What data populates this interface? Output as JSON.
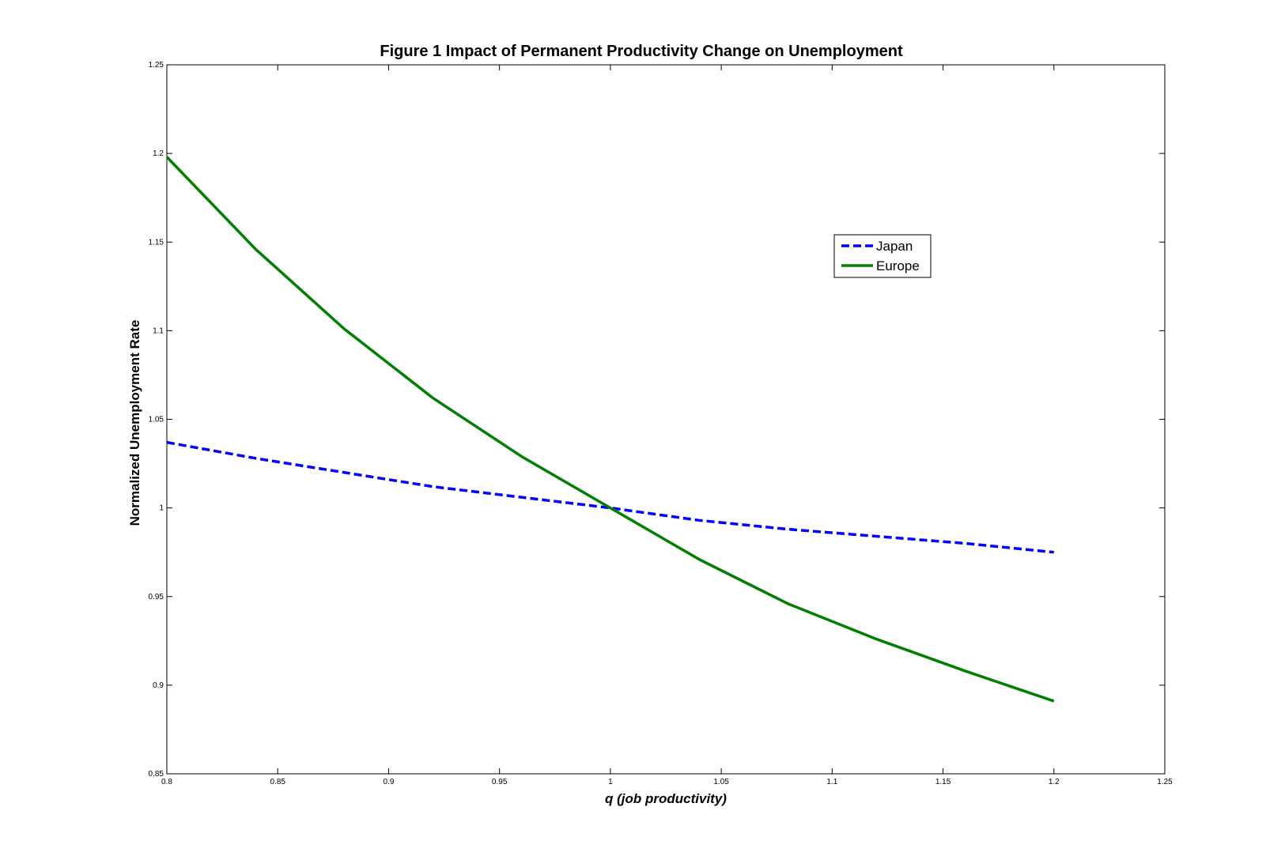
{
  "chart_data": {
    "type": "line",
    "title": "Figure 1 Impact of Permanent Productivity Change on Unemployment",
    "xlabel": "q (job productivity)",
    "ylabel": "Normalized Unemployment Rate",
    "xlim": [
      0.8,
      1.25
    ],
    "ylim": [
      0.85,
      1.25
    ],
    "x_ticks": [
      "0.8",
      "0.85",
      "0.9",
      "0.95",
      "1",
      "1.05",
      "1.1",
      "1.15",
      "1.2",
      "1.25"
    ],
    "y_ticks": [
      "0.85",
      "0.9",
      "0.95",
      "1",
      "1.05",
      "1.1",
      "1.15",
      "1.2",
      "1.25"
    ],
    "legend_position": "upper-right-inside",
    "grid": false,
    "series": [
      {
        "name": "Japan",
        "color": "#0000ff",
        "style": "dashed",
        "x": [
          0.8,
          0.84,
          0.88,
          0.92,
          0.96,
          1.0,
          1.04,
          1.08,
          1.12,
          1.16,
          1.2
        ],
        "y": [
          1.037,
          1.028,
          1.02,
          1.012,
          1.006,
          1.0,
          0.993,
          0.988,
          0.984,
          0.98,
          0.975
        ]
      },
      {
        "name": "Europe",
        "color": "#007f00",
        "style": "solid",
        "x": [
          0.8,
          0.84,
          0.88,
          0.92,
          0.96,
          1.0,
          1.04,
          1.08,
          1.12,
          1.16,
          1.2
        ],
        "y": [
          1.198,
          1.146,
          1.101,
          1.062,
          1.029,
          1.0,
          0.971,
          0.946,
          0.926,
          0.908,
          0.891
        ]
      }
    ]
  }
}
